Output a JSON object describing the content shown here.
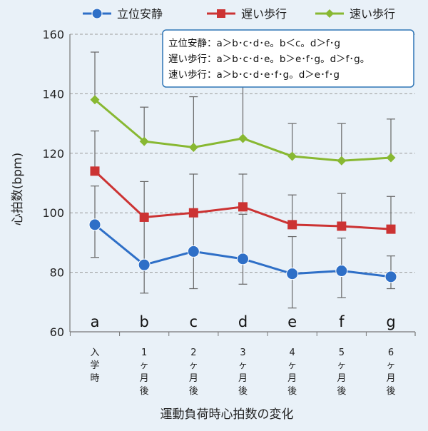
{
  "chart_data": {
    "type": "line",
    "title": "",
    "xlabel": "運動負荷時心拍数の変化",
    "ylabel": "心拍数(bpm)",
    "ylim": [
      60,
      160
    ],
    "y_ticks": [
      60,
      80,
      100,
      120,
      140,
      160
    ],
    "grid": true,
    "legend_position": "top",
    "categories": [
      "入学時",
      "1ヶ月後",
      "2ヶ月後",
      "3ヶ月後",
      "4ヶ月後",
      "5ヶ月後",
      "6ヶ月後"
    ],
    "category_letters": [
      "a",
      "b",
      "c",
      "d",
      "e",
      "f",
      "g"
    ],
    "series": [
      {
        "name": "立位安静",
        "color": "#2e6fc7",
        "marker": "circle",
        "values": [
          96,
          82.5,
          87,
          84.5,
          79.5,
          80.5,
          78.5
        ],
        "error_upper": [
          109,
          98.5,
          100,
          99.5,
          92,
          91.5,
          85.5
        ],
        "error_lower": [
          85,
          73,
          74.5,
          76,
          68,
          71.5,
          74.5
        ]
      },
      {
        "name": "遅い歩行",
        "color": "#cc3333",
        "marker": "square",
        "values": [
          114,
          98.5,
          100,
          102,
          96,
          95.5,
          94.5
        ],
        "error_upper": [
          127.5,
          110.5,
          113,
          113,
          106,
          106.5,
          105.5
        ]
      },
      {
        "name": "速い歩行",
        "color": "#88b832",
        "marker": "diamond",
        "values": [
          138,
          124,
          122,
          125,
          119,
          117.5,
          118.5
        ],
        "error_upper": [
          154,
          135.5,
          139,
          143,
          130,
          130,
          131.5
        ]
      }
    ],
    "annotation": {
      "lines": [
        "立位安静：a＞b･c･d･e。b＜c。d＞f･g",
        "遅い歩行：a＞b･c･d･e。b＞e･f･g。d＞f･g。",
        "速い歩行：a＞b･c･d･e･f･g。d＞e･f･g"
      ]
    }
  }
}
